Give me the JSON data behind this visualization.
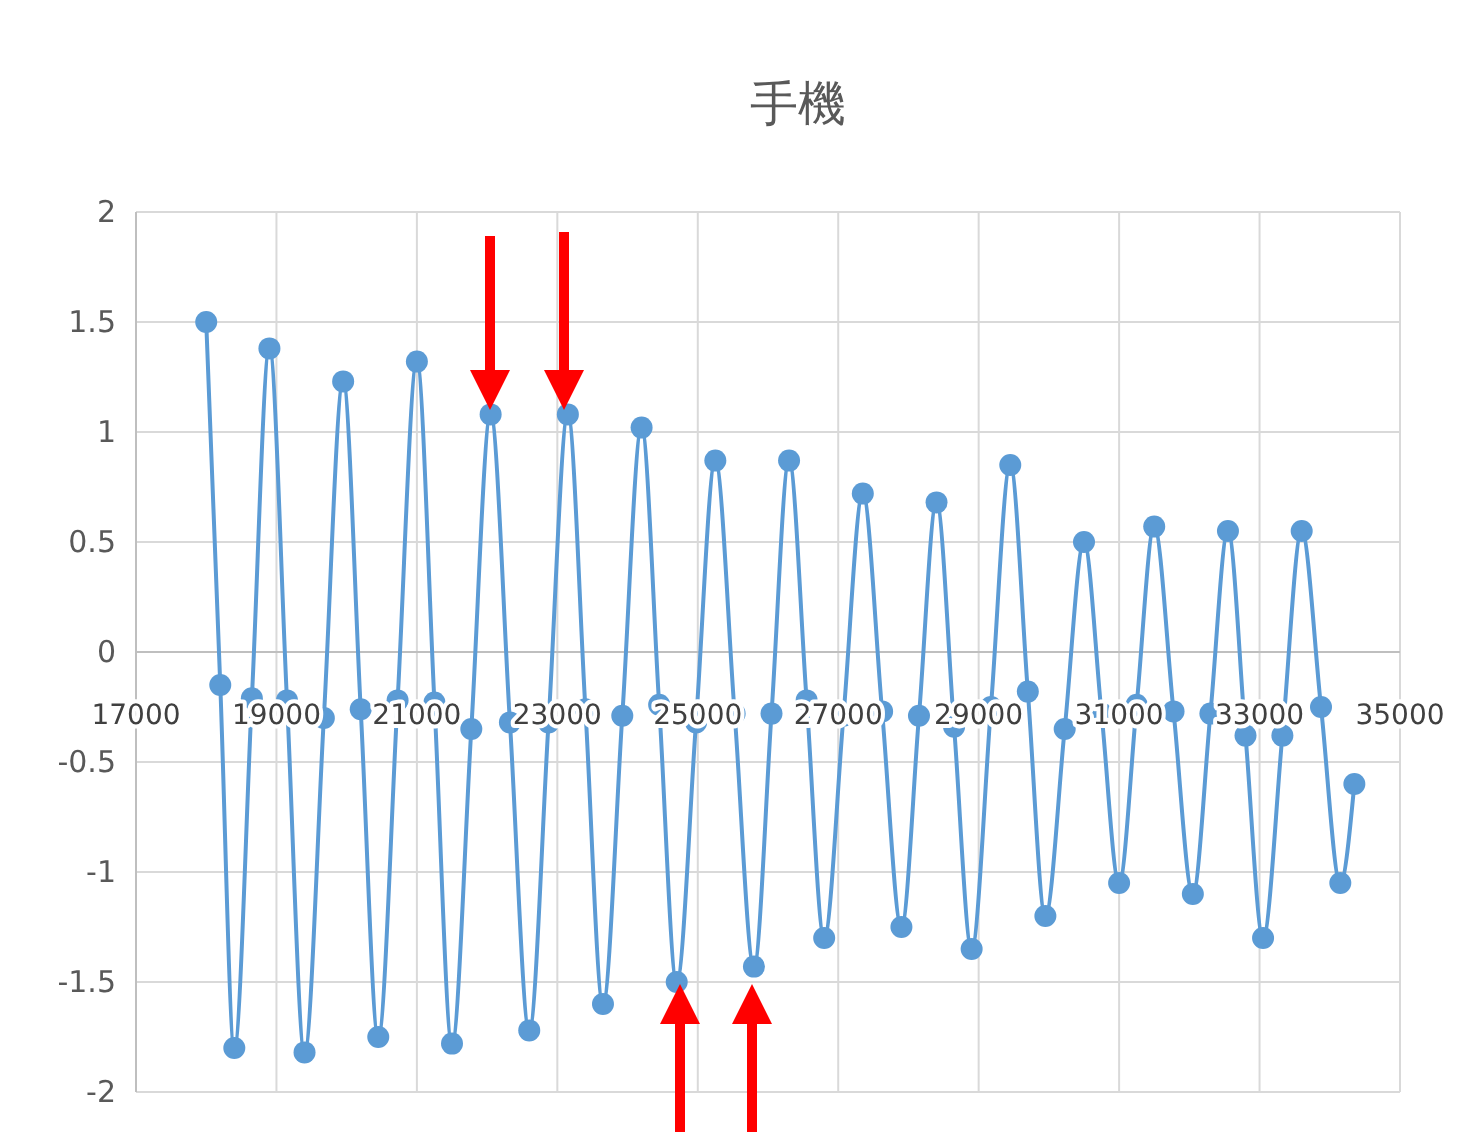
{
  "chart_data": {
    "type": "line",
    "title": "手機",
    "xlim": [
      17000,
      35000
    ],
    "xticks": [
      17000,
      19000,
      21000,
      23000,
      25000,
      27000,
      29000,
      31000,
      33000,
      35000
    ],
    "ylim": [
      -2,
      2
    ],
    "yticks": [
      -2,
      -1.5,
      -1,
      -0.5,
      0,
      0.5,
      1,
      1.5,
      2
    ],
    "grid": true,
    "marker": "circle",
    "series": [
      {
        "color": "#5b9bd5",
        "x": [
          18000,
          18200,
          18400,
          18650,
          18900,
          19150,
          19400,
          19675,
          19950,
          20200,
          20450,
          20725,
          21000,
          21250,
          21500,
          21775,
          22050,
          22325,
          22600,
          22875,
          23150,
          23400,
          23650,
          23925,
          24200,
          24450,
          24700,
          24975,
          25250,
          25525,
          25800,
          26050,
          26300,
          26550,
          26800,
          27075,
          27350,
          27625,
          27900,
          28150,
          28400,
          28650,
          28900,
          29175,
          29450,
          29700,
          29950,
          30225,
          30500,
          30750,
          31000,
          31250,
          31500,
          31775,
          32050,
          32300,
          32550,
          32800,
          33050,
          33325,
          33600,
          33875,
          34150,
          34350
        ],
        "values": [
          1.5,
          -0.15,
          -1.8,
          -0.21,
          1.38,
          -0.22,
          -1.82,
          -0.3,
          1.23,
          -0.26,
          -1.75,
          -0.22,
          1.32,
          -0.23,
          -1.78,
          -0.35,
          1.08,
          -0.32,
          -1.72,
          -0.32,
          1.08,
          -0.26,
          -1.6,
          -0.29,
          1.02,
          -0.24,
          -1.5,
          -0.32,
          0.87,
          -0.28,
          -1.43,
          -0.28,
          0.87,
          -0.22,
          -1.3,
          -0.29,
          0.72,
          -0.27,
          -1.25,
          -0.29,
          0.68,
          -0.34,
          -1.35,
          -0.25,
          0.85,
          -0.18,
          -1.2,
          -0.35,
          0.5,
          -0.28,
          -1.05,
          -0.24,
          0.57,
          -0.27,
          -1.1,
          -0.28,
          0.55,
          -0.38,
          -1.3,
          -0.38,
          0.55,
          -0.25,
          -1.05,
          -0.6
        ]
      }
    ]
  }
}
